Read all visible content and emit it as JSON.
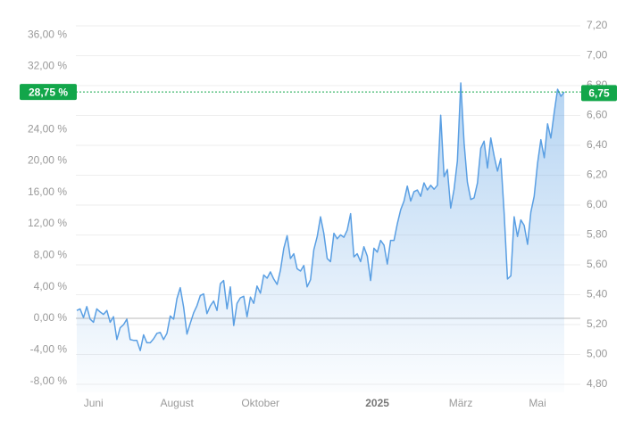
{
  "chart_data": {
    "type": "area-line",
    "values": [
      1.0,
      1.2,
      0.1,
      1.5,
      -0.1,
      -0.5,
      1.2,
      0.8,
      0.5,
      1.0,
      -0.5,
      0.2,
      -2.7,
      -1.2,
      -0.8,
      -0.1,
      -2.7,
      -2.8,
      -2.8,
      -4.1,
      -2.1,
      -3.1,
      -3.1,
      -2.6,
      -1.9,
      -1.8,
      -2.7,
      -1.9,
      0.3,
      -0.1,
      2.5,
      3.9,
      1.4,
      -2.0,
      -0.6,
      0.7,
      1.6,
      2.9,
      3.1,
      0.6,
      1.6,
      2.2,
      1.0,
      4.4,
      4.8,
      1.2,
      4.0,
      -0.9,
      1.9,
      2.6,
      2.8,
      0.2,
      2.7,
      1.9,
      4.1,
      3.2,
      5.5,
      5.1,
      5.9,
      5.0,
      4.3,
      6.1,
      8.9,
      10.5,
      7.6,
      8.2,
      6.3,
      6.0,
      6.7,
      4.0,
      4.9,
      8.7,
      10.4,
      12.9,
      10.8,
      7.6,
      7.2,
      10.8,
      10.1,
      10.6,
      10.3,
      11.2,
      13.3,
      7.8,
      8.2,
      7.2,
      9.1,
      7.9,
      4.8,
      8.9,
      8.4,
      9.9,
      9.3,
      6.9,
      9.9,
      9.9,
      12.0,
      13.8,
      14.9,
      16.8,
      14.9,
      16.1,
      16.3,
      15.5,
      17.2,
      16.3,
      16.9,
      16.4,
      16.9,
      25.8,
      18.0,
      18.9,
      14.0,
      16.4,
      20.0,
      29.9,
      22.3,
      17.3,
      15.1,
      15.3,
      17.2,
      21.6,
      22.5,
      19.1,
      22.9,
      20.6,
      18.7,
      20.3,
      13.3,
      5.0,
      5.4,
      12.9,
      10.4,
      12.5,
      11.8,
      9.4,
      13.5,
      15.5,
      19.7,
      22.7,
      20.4,
      24.7,
      22.9,
      26.2,
      29.1,
      28.2,
      28.75
    ],
    "color": "#5a9fe3",
    "xlim": [
      0,
      146
    ],
    "xticks": [
      {
        "value": 5,
        "label": "Juni"
      },
      {
        "value": 30,
        "label": "August"
      },
      {
        "value": 55,
        "label": "Oktober"
      },
      {
        "value": 90,
        "label": "2025"
      },
      {
        "value": 115,
        "label": "März"
      },
      {
        "value": 138,
        "label": "Mai"
      }
    ],
    "ylim": [
      -9.4,
      37.15
    ],
    "yticks": [
      {
        "value": 36,
        "label": "36,00 %"
      },
      {
        "value": 32,
        "label": "32,00 %"
      },
      {
        "value": 24,
        "label": "24,00 %"
      },
      {
        "value": 20,
        "label": "20,00 %"
      },
      {
        "value": 16,
        "label": "16,00 %"
      },
      {
        "value": 12,
        "label": "12,00 %"
      },
      {
        "value": 8,
        "label": "8,00 %"
      },
      {
        "value": 4,
        "label": "4,00 %"
      },
      {
        "value": 0,
        "label": "0,00 %"
      },
      {
        "value": -4,
        "label": "-4,00 %"
      },
      {
        "value": -8,
        "label": "-8,00 %"
      }
    ],
    "y2lim": [
      4.746,
      7.2
    ],
    "y2ticks": [
      {
        "value": 7.2,
        "label": "7,20"
      },
      {
        "value": 7.0,
        "label": "7,00"
      },
      {
        "value": 6.8,
        "label": "6,80"
      },
      {
        "value": 6.6,
        "label": "6,60"
      },
      {
        "value": 6.4,
        "label": "6,40"
      },
      {
        "value": 6.2,
        "label": "6,20"
      },
      {
        "value": 6.0,
        "label": "6,00"
      },
      {
        "value": 5.8,
        "label": "5,80"
      },
      {
        "value": 5.6,
        "label": "5,60"
      },
      {
        "value": 5.4,
        "label": "5,40"
      },
      {
        "value": 5.2,
        "label": "5,20"
      },
      {
        "value": 5.0,
        "label": "5,00"
      },
      {
        "value": 4.8,
        "label": "4,80"
      }
    ],
    "current": {
      "value": 28.75,
      "label": "28,75 %",
      "price": {
        "value": 6.75,
        "label": "6,75"
      },
      "color": "#12a64a"
    },
    "grid": true
  }
}
